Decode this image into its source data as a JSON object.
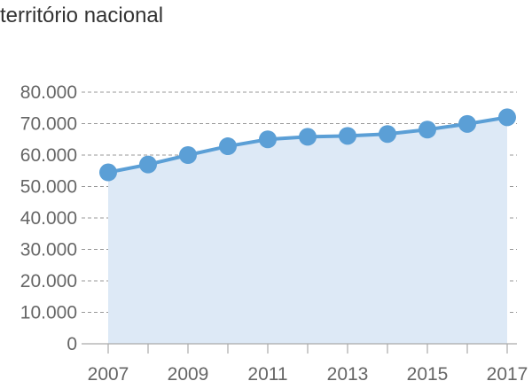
{
  "title": "território nacional",
  "chart_data": {
    "type": "area",
    "title": "território nacional",
    "x": [
      2007,
      2008,
      2009,
      2010,
      2011,
      2012,
      2013,
      2014,
      2015,
      2016,
      2017
    ],
    "values": [
      54500,
      57000,
      60000,
      62800,
      65000,
      65800,
      66100,
      66700,
      68100,
      69900,
      72000
    ],
    "xticks": [
      "2007",
      "2009",
      "2011",
      "2013",
      "2015",
      "2017"
    ],
    "yticks": [
      "80.000",
      "70.000",
      "60.000",
      "50.000",
      "40.000",
      "30.000",
      "20.000",
      "10.000",
      "0"
    ],
    "ylim": [
      0,
      80000
    ],
    "xlim": [
      2007,
      2017
    ],
    "xlabel": "",
    "ylabel": "",
    "grid": "horizontal dashed",
    "colors": {
      "line": "#5b9fd6",
      "fill": "#dde9f6",
      "marker": "#5b9fd6",
      "grid": "#999999",
      "axis": "#aaaaaa",
      "text": "#666666"
    }
  }
}
